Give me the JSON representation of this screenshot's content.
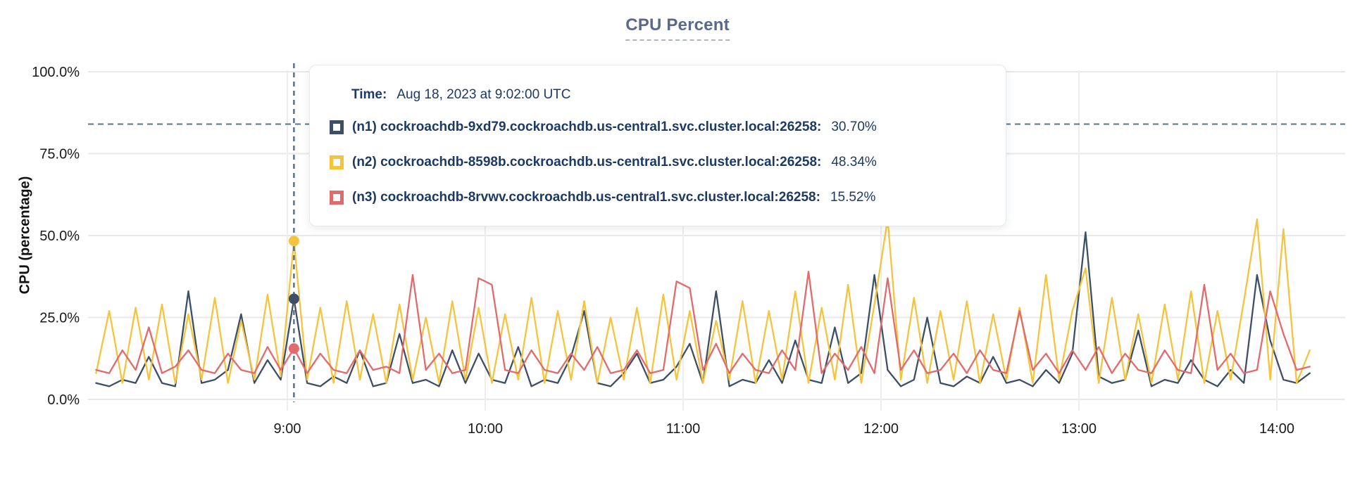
{
  "title": "CPU Percent",
  "tooltip": {
    "time_label": "Time:",
    "time_value": "Aug 18, 2023 at 9:02:00 UTC",
    "rows": [
      {
        "name": "(n1) cockroachdb-9xd79.cockroachdb.us-central1.svc.cluster.local:26258:",
        "value": "30.70%",
        "color": "#3D4F66"
      },
      {
        "name": "(n2) cockroachdb-8598b.cockroachdb.us-central1.svc.cluster.local:26258:",
        "value": "48.34%",
        "color": "#F5C43D"
      },
      {
        "name": "(n3) cockroachdb-8rvwv.cockroachdb.us-central1.svc.cluster.local:26258:",
        "value": "15.52%",
        "color": "#E16A6C"
      }
    ]
  },
  "colors": {
    "grid_horizontal": "#E8E8E8",
    "grid_vertical": "#EDEDED",
    "dashed_guides": "#5B7285",
    "tick_text": "#1A1A1A"
  },
  "chart_data": {
    "type": "line",
    "title": "CPU Percent",
    "xlabel": "",
    "ylabel": "CPU (percentage)",
    "ylim": [
      0,
      100
    ],
    "grid": true,
    "y_ticks": [
      {
        "value": 0,
        "label": "0.0%"
      },
      {
        "value": 25,
        "label": "25.0%"
      },
      {
        "value": 50,
        "label": "50.0%"
      },
      {
        "value": 75,
        "label": "75.0%"
      },
      {
        "value": 100,
        "label": "100.0%"
      }
    ],
    "x_ticks": [
      {
        "minutes": 60,
        "label": "9:00"
      },
      {
        "minutes": 120,
        "label": "10:00"
      },
      {
        "minutes": 180,
        "label": "11:00"
      },
      {
        "minutes": 240,
        "label": "12:00"
      },
      {
        "minutes": 300,
        "label": "13:00"
      },
      {
        "minutes": 360,
        "label": "14:00"
      }
    ],
    "x_unit": "minutes since 08:00 on Aug 18, 2023 (UTC)",
    "x_domain_minutes": [
      2,
      370
    ],
    "threshold_line": {
      "value": 84,
      "style": "dashed"
    },
    "hover": {
      "minutes": 62,
      "time": "Aug 18, 2023 at 9:02:00 UTC"
    },
    "sample_start_minutes": 2,
    "sample_step_minutes": 4,
    "series": [
      {
        "name": "(n1) cockroachdb-9xd79.cockroachdb.us-central1.svc.cluster.local:26258",
        "color": "#3D4F66",
        "hover_value": 30.7,
        "values": [
          5,
          4,
          6,
          5,
          13,
          5,
          4,
          33,
          5,
          6,
          9,
          26,
          5,
          12,
          6,
          30.7,
          5,
          4,
          7,
          5,
          15,
          4,
          5,
          20,
          5,
          6,
          4,
          15,
          5,
          14,
          6,
          5,
          16,
          4,
          6,
          5,
          13,
          27,
          5,
          4,
          8,
          14,
          5,
          6,
          10,
          17,
          5,
          33,
          4,
          6,
          5,
          12,
          5,
          18,
          6,
          5,
          22,
          5,
          8,
          38,
          9,
          4,
          6,
          25,
          5,
          4,
          7,
          5,
          13,
          5,
          6,
          4,
          9,
          5,
          14,
          51,
          7,
          5,
          6,
          21,
          4,
          6,
          5,
          12,
          6,
          4,
          9,
          5,
          38,
          18,
          6,
          5,
          8
        ]
      },
      {
        "name": "(n2) cockroachdb-8598b.cockroachdb.us-central1.svc.cluster.local:26258",
        "color": "#F5C43D",
        "hover_value": 48.34,
        "values": [
          8,
          27,
          5,
          28,
          6,
          29,
          5,
          26,
          6,
          31,
          5,
          24,
          6,
          32,
          7,
          48.34,
          6,
          28,
          5,
          30,
          6,
          26,
          5,
          29,
          6,
          25,
          5,
          30,
          6,
          28,
          5,
          26,
          6,
          31,
          5,
          27,
          6,
          30,
          5,
          25,
          6,
          28,
          5,
          32,
          6,
          27,
          5,
          24,
          6,
          30,
          5,
          27,
          6,
          33,
          5,
          28,
          6,
          35,
          5,
          29,
          55,
          6,
          31,
          5,
          27,
          6,
          30,
          5,
          26,
          6,
          28,
          5,
          38,
          6,
          27,
          40,
          5,
          31,
          6,
          26,
          5,
          29,
          6,
          33,
          5,
          27,
          6,
          30,
          55,
          6,
          52,
          5,
          15
        ]
      },
      {
        "name": "(n3) cockroachdb-8rvwv.cockroachdb.us-central1.svc.cluster.local:26258",
        "color": "#E16A6C",
        "hover_value": 15.52,
        "values": [
          9,
          8,
          15,
          9,
          22,
          8,
          10,
          15,
          9,
          8,
          14,
          9,
          8,
          16,
          9,
          15.52,
          8,
          14,
          9,
          8,
          15,
          9,
          10,
          8,
          38,
          9,
          14,
          8,
          9,
          37,
          35,
          9,
          8,
          15,
          9,
          8,
          14,
          9,
          16,
          8,
          9,
          15,
          8,
          9,
          36,
          34,
          9,
          17,
          8,
          14,
          9,
          8,
          15,
          9,
          39,
          8,
          14,
          9,
          16,
          8,
          37,
          9,
          15,
          8,
          9,
          14,
          8,
          15,
          9,
          8,
          27,
          9,
          14,
          8,
          15,
          9,
          16,
          8,
          14,
          9,
          8,
          15,
          9,
          8,
          35,
          9,
          14,
          8,
          9,
          33,
          20,
          9,
          10
        ]
      }
    ]
  }
}
